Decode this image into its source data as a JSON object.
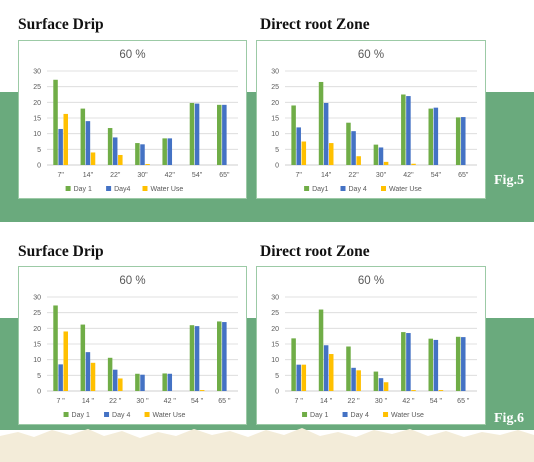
{
  "colors": {
    "band": "#6aaa7d",
    "day1": "#70ad47",
    "day4": "#4472c4",
    "water": "#ffc000",
    "axis_text": "#595959",
    "grid": "#d9d9d9"
  },
  "figures": [
    {
      "label": "Fig.5"
    },
    {
      "label": "Fig.6"
    }
  ],
  "chart_data": [
    {
      "type": "bar",
      "section_heading": "Surface Drip",
      "title": "60 %",
      "categories": [
        "7\"",
        "14\"",
        "22\"",
        "30\"",
        "42\"",
        "54\"",
        "65\""
      ],
      "series": [
        {
          "name": "Day 1",
          "values": [
            27.2,
            18.0,
            11.8,
            7.0,
            8.5,
            19.8,
            19.2
          ]
        },
        {
          "name": "Day4",
          "values": [
            11.5,
            14.0,
            8.8,
            6.6,
            8.5,
            19.6,
            19.2
          ]
        },
        {
          "name": "Water Use",
          "values": [
            16.3,
            4.0,
            3.2,
            0.3,
            0,
            0,
            0
          ]
        }
      ],
      "yticks": [
        0,
        5,
        10,
        15,
        20,
        25,
        30
      ],
      "ylim": [
        0,
        30
      ],
      "xlabel": "",
      "ylabel": "",
      "grid": true,
      "legend": "bottom"
    },
    {
      "type": "bar",
      "section_heading": "Direct root Zone",
      "title": "60 %",
      "categories": [
        "7\"",
        "14\"",
        "22\"",
        "30\"",
        "42\"",
        "54\"",
        "65\""
      ],
      "series": [
        {
          "name": "Day1",
          "values": [
            19.0,
            26.5,
            13.5,
            6.5,
            22.5,
            18.0,
            15.2
          ]
        },
        {
          "name": "Day 4",
          "values": [
            12.0,
            19.8,
            10.8,
            5.6,
            22.0,
            18.3,
            15.3
          ]
        },
        {
          "name": "Water Use",
          "values": [
            7.5,
            7.0,
            2.8,
            1.0,
            0.4,
            0,
            0
          ]
        }
      ],
      "yticks": [
        0,
        5,
        10,
        15,
        20,
        25,
        30
      ],
      "ylim": [
        0,
        30
      ],
      "xlabel": "",
      "ylabel": "",
      "grid": true,
      "legend": "bottom"
    },
    {
      "type": "bar",
      "section_heading": "Surface Drip",
      "title": "60 %",
      "categories": [
        "7 \"",
        "14 \"",
        "22 \"",
        "30 \"",
        "42 \"",
        "54 \"",
        "65 \""
      ],
      "series": [
        {
          "name": "Day 1",
          "values": [
            27.3,
            21.2,
            10.6,
            5.5,
            5.6,
            21.0,
            22.2
          ]
        },
        {
          "name": "Day 4",
          "values": [
            8.5,
            12.4,
            6.8,
            5.2,
            5.5,
            20.7,
            22.0
          ]
        },
        {
          "name": "Water Use",
          "values": [
            19.0,
            9.0,
            4.0,
            0,
            0,
            0.3,
            0
          ]
        }
      ],
      "yticks": [
        0,
        5,
        10,
        15,
        20,
        25,
        30
      ],
      "ylim": [
        0,
        30
      ],
      "xlabel": "",
      "ylabel": "",
      "grid": true,
      "legend": "bottom"
    },
    {
      "type": "bar",
      "section_heading": "Direct root Zone",
      "title": "60 %",
      "categories": [
        "7 \"",
        "14 \"",
        "22 \"",
        "30 \"",
        "42 \"",
        "54 \"",
        "65 \""
      ],
      "series": [
        {
          "name": "Day 1",
          "values": [
            16.8,
            26.0,
            14.2,
            6.2,
            18.8,
            16.7,
            17.3
          ]
        },
        {
          "name": "Day 4",
          "values": [
            8.4,
            14.6,
            7.4,
            4.1,
            18.5,
            16.3,
            17.2
          ]
        },
        {
          "name": "Water Use",
          "values": [
            8.4,
            11.8,
            6.6,
            2.8,
            0.3,
            0.3,
            0
          ]
        }
      ],
      "yticks": [
        0,
        5,
        10,
        15,
        20,
        25,
        30
      ],
      "ylim": [
        0,
        30
      ],
      "xlabel": "",
      "ylabel": "",
      "grid": true,
      "legend": "bottom"
    }
  ]
}
